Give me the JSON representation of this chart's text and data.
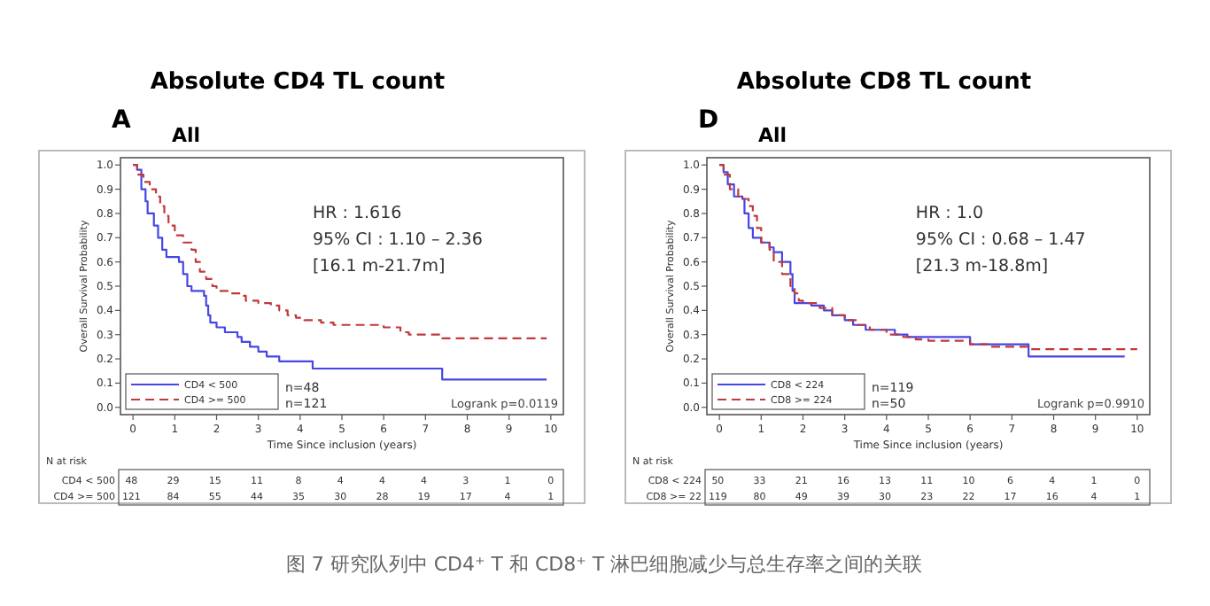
{
  "chart_data": [
    {
      "type": "step",
      "title": "Absolute CD4 TL count",
      "subtitle": "All",
      "xlabel": "Time Since inclusion (years)",
      "ylabel": "Overall Survival Probability",
      "xlim": [
        -0.3,
        10.3
      ],
      "ylim": [
        -0.03,
        1.03
      ],
      "xticks": [
        0,
        1,
        2,
        3,
        4,
        5,
        6,
        7,
        8,
        9,
        10
      ],
      "yticks": [
        {
          "value": 0,
          "label": "0.0"
        },
        {
          "value": 0.1,
          "label": "0.1"
        },
        {
          "value": 0.2,
          "label": "0.2"
        },
        {
          "value": 0.3,
          "label": "0.3"
        },
        {
          "value": 0.4,
          "label": "0.4"
        },
        {
          "value": 0.5,
          "label": "0.5"
        },
        {
          "value": 0.6,
          "label": "0.6"
        },
        {
          "value": 0.7,
          "label": "0.7"
        },
        {
          "value": 0.8,
          "label": "0.8"
        },
        {
          "value": 0.9,
          "label": "0.9"
        },
        {
          "value": 1,
          "label": "1.0"
        }
      ],
      "grid": false,
      "legend": "bottom left",
      "series": [
        {
          "name": "CD4 < 500",
          "color": "#4646e6",
          "line_style": "solid",
          "x": [
            0,
            0.1,
            0.2,
            0.3,
            0.35,
            0.5,
            0.6,
            0.7,
            0.8,
            1.1,
            1.2,
            1.3,
            1.4,
            1.7,
            1.75,
            1.8,
            1.85,
            2.0,
            2.2,
            2.5,
            2.6,
            2.8,
            3.0,
            3.2,
            3.5,
            4.3,
            7.4,
            9.9
          ],
          "values": [
            1,
            0.98,
            0.9,
            0.85,
            0.8,
            0.75,
            0.7,
            0.65,
            0.62,
            0.6,
            0.55,
            0.5,
            0.48,
            0.46,
            0.42,
            0.38,
            0.35,
            0.33,
            0.31,
            0.29,
            0.27,
            0.25,
            0.23,
            0.21,
            0.19,
            0.16,
            0.115,
            0.115
          ]
        },
        {
          "name": "CD4 >= 500",
          "color": "#c0393b",
          "line_style": "dashed",
          "x": [
            0,
            0.1,
            0.25,
            0.4,
            0.55,
            0.65,
            0.75,
            0.85,
            1.0,
            1.2,
            1.4,
            1.5,
            1.6,
            1.75,
            1.9,
            2.0,
            2.3,
            2.6,
            2.7,
            3.0,
            3.3,
            3.5,
            3.7,
            3.9,
            4.1,
            4.5,
            4.8,
            6.0,
            6.4,
            6.6,
            7.4,
            9.9
          ],
          "values": [
            1,
            0.96,
            0.93,
            0.9,
            0.87,
            0.83,
            0.79,
            0.75,
            0.71,
            0.68,
            0.65,
            0.6,
            0.56,
            0.53,
            0.5,
            0.48,
            0.47,
            0.46,
            0.44,
            0.43,
            0.42,
            0.4,
            0.38,
            0.37,
            0.36,
            0.35,
            0.34,
            0.33,
            0.31,
            0.3,
            0.285,
            0.285
          ]
        }
      ],
      "annotations": [
        "A",
        "HR : 1.616",
        "95% CI : 1.10 – 2.36",
        "[16.1 m-21.7m]",
        "n=48",
        "n=121",
        "Logrank p=0.0119",
        "N at risk",
        "CD4 < 500",
        "48 29 15 11 8 4 4 4 3 1 0",
        "CD4 >= 500",
        "121 84 55 44 35 30 28 19 17 4 1"
      ]
    },
    {
      "type": "step",
      "title": "Absolute CD8 TL count",
      "subtitle": "All",
      "xlabel": "Time Since inclusion (years)",
      "ylabel": "Overall Survival Probability",
      "xlim": [
        -0.3,
        10.3
      ],
      "ylim": [
        -0.03,
        1.03
      ],
      "xticks": [
        0,
        1,
        2,
        3,
        4,
        5,
        6,
        7,
        8,
        9,
        10
      ],
      "yticks": [
        {
          "value": 0,
          "label": "0.0"
        },
        {
          "value": 0.1,
          "label": "0.1"
        },
        {
          "value": 0.2,
          "label": "0.2"
        },
        {
          "value": 0.3,
          "label": "0.3"
        },
        {
          "value": 0.4,
          "label": "0.4"
        },
        {
          "value": 0.5,
          "label": "0.5"
        },
        {
          "value": 0.6,
          "label": "0.6"
        },
        {
          "value": 0.7,
          "label": "0.7"
        },
        {
          "value": 0.8,
          "label": "0.8"
        },
        {
          "value": 0.9,
          "label": "0.9"
        },
        {
          "value": 1,
          "label": "1.0"
        }
      ],
      "grid": false,
      "legend": "bottom left",
      "series": [
        {
          "name": "CD8 < 224",
          "color": "#4646e6",
          "line_style": "solid",
          "x": [
            0,
            0.1,
            0.2,
            0.35,
            0.55,
            0.6,
            0.7,
            0.8,
            1.0,
            1.2,
            1.3,
            1.5,
            1.7,
            1.75,
            1.8,
            2.2,
            2.5,
            2.7,
            3.0,
            3.2,
            3.5,
            4.2,
            4.5,
            6.0,
            7.4,
            9.7
          ],
          "values": [
            1,
            0.97,
            0.92,
            0.87,
            0.86,
            0.8,
            0.74,
            0.7,
            0.68,
            0.66,
            0.64,
            0.6,
            0.55,
            0.48,
            0.43,
            0.42,
            0.4,
            0.38,
            0.36,
            0.34,
            0.32,
            0.3,
            0.29,
            0.26,
            0.21,
            0.21
          ]
        },
        {
          "name": "CD8 >= 224",
          "color": "#c0393b",
          "line_style": "dashed",
          "x": [
            0,
            0.1,
            0.25,
            0.45,
            0.7,
            0.8,
            0.9,
            1.0,
            1.2,
            1.3,
            1.5,
            1.7,
            1.8,
            1.9,
            2.0,
            2.4,
            2.7,
            3.0,
            3.3,
            3.6,
            4.0,
            4.4,
            4.7,
            5.0,
            6.0,
            6.5,
            7.4,
            10.0
          ],
          "values": [
            1,
            0.96,
            0.9,
            0.86,
            0.83,
            0.79,
            0.74,
            0.68,
            0.65,
            0.6,
            0.55,
            0.5,
            0.47,
            0.44,
            0.43,
            0.41,
            0.38,
            0.36,
            0.34,
            0.32,
            0.3,
            0.29,
            0.28,
            0.275,
            0.26,
            0.25,
            0.24,
            0.24
          ]
        }
      ],
      "annotations": [
        "D",
        "HR : 1.0",
        "95% CI : 0.68 – 1.47",
        "[21.3 m-18.8m]",
        "n=119",
        "n=50",
        "Logrank p=0.9910",
        "N at risk",
        "CD8 < 224",
        "50 33 21 16 13 11 10 6 4 1 0",
        "CD8 >= 22",
        "119 80 49 39 30 23 22 17 16 4 1",
        "图 7 研究队列中 CD4⁺ T 和 CD8⁺ T 淋巴细胞减少与总生存率之间的关联"
      ]
    }
  ]
}
